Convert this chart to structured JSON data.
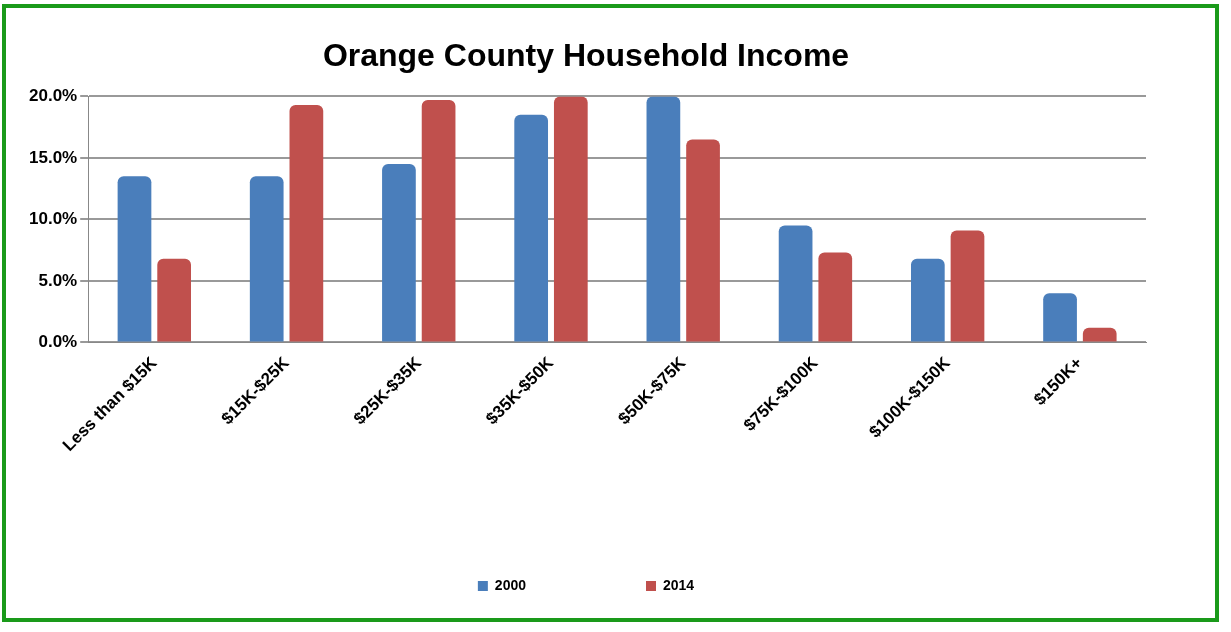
{
  "chart_data": {
    "type": "bar",
    "title": "Orange County Household Income",
    "categories": [
      "Less than $15K",
      "$15K-$25K",
      "$25K-$35K",
      "$35K-$50K",
      "$50K-$75K",
      "$75K-$100K",
      "$100K-$150K",
      "$150K+"
    ],
    "series": [
      {
        "name": "2000",
        "color": "#4a7ebb",
        "values": [
          13.5,
          13.5,
          14.5,
          18.5,
          20.0,
          9.5,
          6.8,
          4.0
        ]
      },
      {
        "name": "2014",
        "color": "#c0504d",
        "values": [
          6.8,
          19.3,
          19.7,
          20.0,
          16.5,
          7.3,
          9.1,
          1.2
        ]
      }
    ],
    "ylim": [
      0,
      20
    ],
    "yticks": [
      {
        "value": 0,
        "label": "0.0%"
      },
      {
        "value": 5,
        "label": "5.0%"
      },
      {
        "value": 10,
        "label": "10.0%"
      },
      {
        "value": 15,
        "label": "15.0%"
      },
      {
        "value": 20,
        "label": "20.0%"
      }
    ],
    "grid": "y",
    "legend": "bottom"
  }
}
